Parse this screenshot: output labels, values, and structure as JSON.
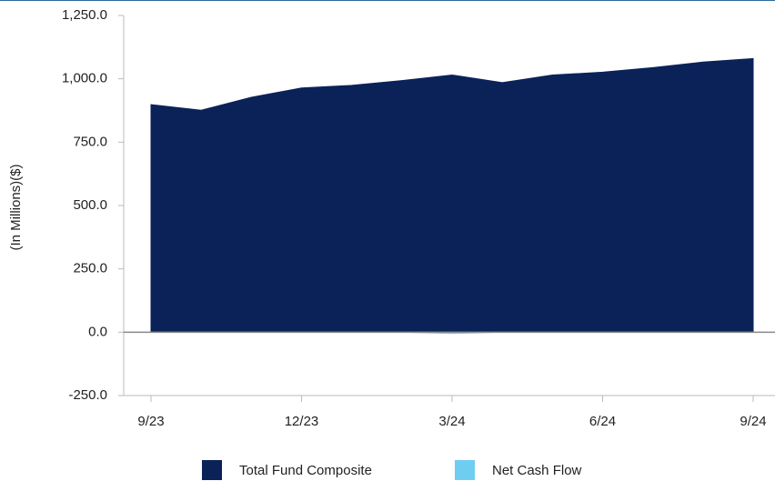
{
  "chart_data": {
    "type": "area",
    "y_label": "(In Millions)($)",
    "categories": [
      "9/23",
      null,
      null,
      "12/23",
      null,
      null,
      "3/24",
      null,
      null,
      "6/24",
      null,
      null,
      "9/24"
    ],
    "series": [
      {
        "name": "Total Fund Composite",
        "color": "#0b2259",
        "values": [
          898,
          876,
          927,
          964,
          974,
          993,
          1015,
          985,
          1015,
          1026,
          1044,
          1066,
          1080
        ]
      },
      {
        "name": "Net Cash Flow",
        "color": "#6fcdf2",
        "values": [
          0,
          0,
          0,
          0,
          0,
          0,
          -5,
          0,
          0,
          0,
          0,
          0,
          0
        ]
      }
    ],
    "ylim": [
      -250,
      1250
    ],
    "yticks": [
      {
        "value": -250,
        "label": "-250.0"
      },
      {
        "value": 0,
        "label": "0.0"
      },
      {
        "value": 250,
        "label": "250.0"
      },
      {
        "value": 500,
        "label": "500.0"
      },
      {
        "value": 750,
        "label": "750.0"
      },
      {
        "value": 1000,
        "label": "1,000.0"
      },
      {
        "value": 1250,
        "label": "1,250.0"
      }
    ]
  }
}
